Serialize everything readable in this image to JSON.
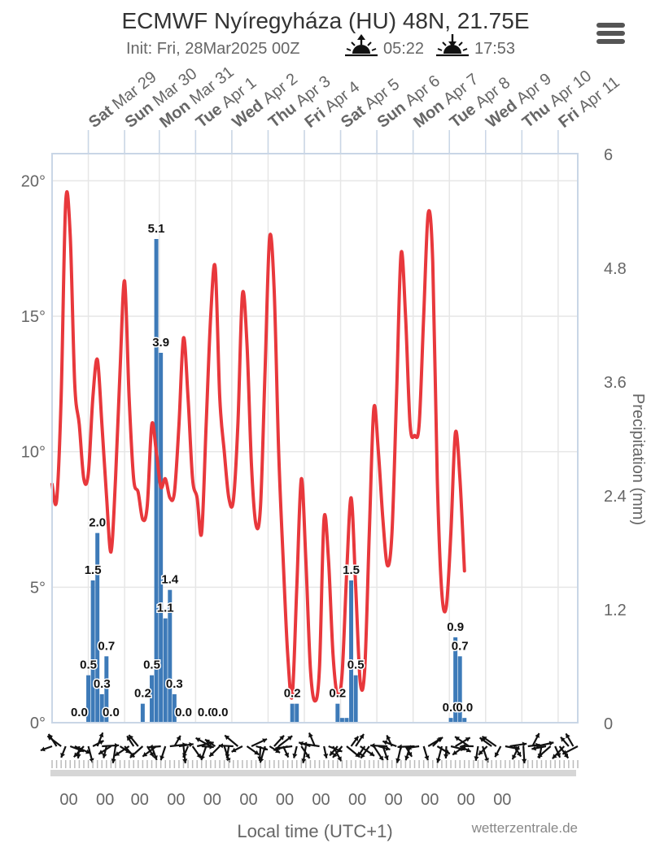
{
  "header": {
    "title": "ECMWF Nyíregyháza (HU) 48N, 21.75E",
    "init_label": "Init: Fri, 28Mar2025 00Z",
    "sunrise_time": "05:22",
    "sunset_time": "17:53"
  },
  "menu": {
    "icon": "hamburger-menu-icon"
  },
  "credit": "wetterzentrale.de",
  "colors": {
    "temperature": "#e8383c",
    "precip": "#3d7ab8",
    "grid": "#e6e6e6",
    "frame": "#c9d6e6",
    "text": "#666666"
  },
  "chart_data": {
    "type": "line+bar",
    "xlabel": "Local time (UTC+1)",
    "ylabel_left": "",
    "ylabel_right": "Precipitation (mm)",
    "y_left": {
      "min": 0,
      "max": 21,
      "ticks": [
        0,
        5,
        10,
        15,
        20
      ],
      "tick_labels": [
        "0°",
        "5°",
        "10°",
        "15°",
        "20°"
      ]
    },
    "y_right": {
      "min": 0,
      "max": 6,
      "ticks": [
        0,
        1.2,
        2.4,
        3.6,
        4.8,
        6
      ],
      "tick_labels": [
        "0",
        "1.2",
        "2.4",
        "3.6",
        "4.8",
        "6"
      ]
    },
    "x_hours": {
      "min": 0,
      "max": 348
    },
    "days": [
      {
        "weekday": "Sat",
        "date": "Mar 29",
        "hour": 24
      },
      {
        "weekday": "Sun",
        "date": "Mar 30",
        "hour": 48
      },
      {
        "weekday": "Mon",
        "date": "Mar 31",
        "hour": 71
      },
      {
        "weekday": "Tue",
        "date": "Apr 1",
        "hour": 95
      },
      {
        "weekday": "Wed",
        "date": "Apr 2",
        "hour": 119
      },
      {
        "weekday": "Thu",
        "date": "Apr 3",
        "hour": 143
      },
      {
        "weekday": "Fri",
        "date": "Apr 4",
        "hour": 167
      },
      {
        "weekday": "Sat",
        "date": "Apr 5",
        "hour": 191
      },
      {
        "weekday": "Sun",
        "date": "Apr 6",
        "hour": 215
      },
      {
        "weekday": "Mon",
        "date": "Apr 7",
        "hour": 239
      },
      {
        "weekday": "Tue",
        "date": "Apr 8",
        "hour": 263
      },
      {
        "weekday": "Wed",
        "date": "Apr 9",
        "hour": 287
      },
      {
        "weekday": "Thu",
        "date": "Apr 10",
        "hour": 311
      },
      {
        "weekday": "Fri",
        "date": "Apr 11",
        "hour": 335
      }
    ],
    "x_tick_label": "00",
    "temperature": {
      "name": "",
      "points": [
        [
          0,
          8.8
        ],
        [
          3,
          8.2
        ],
        [
          6,
          12
        ],
        [
          9,
          19.2
        ],
        [
          12,
          18
        ],
        [
          15,
          12.5
        ],
        [
          18,
          11
        ],
        [
          21,
          9
        ],
        [
          24,
          9.2
        ],
        [
          27,
          12
        ],
        [
          30,
          13.4
        ],
        [
          33,
          11
        ],
        [
          36,
          8.4
        ],
        [
          39,
          6.3
        ],
        [
          42,
          9
        ],
        [
          45,
          13
        ],
        [
          48,
          16.3
        ],
        [
          51,
          12
        ],
        [
          54,
          9
        ],
        [
          57,
          8.5
        ],
        [
          60,
          7.5
        ],
        [
          63,
          8
        ],
        [
          66,
          11
        ],
        [
          69,
          10
        ],
        [
          72,
          8.7
        ],
        [
          75,
          9
        ],
        [
          78,
          8.3
        ],
        [
          81,
          8.5
        ],
        [
          84,
          11
        ],
        [
          87,
          14.2
        ],
        [
          90,
          12
        ],
        [
          93,
          9
        ],
        [
          96,
          8.3
        ],
        [
          99,
          7
        ],
        [
          102,
          11
        ],
        [
          105,
          15
        ],
        [
          108,
          16.8
        ],
        [
          111,
          12
        ],
        [
          114,
          10
        ],
        [
          117,
          8.3
        ],
        [
          120,
          8.2
        ],
        [
          123,
          11
        ],
        [
          126,
          15.8
        ],
        [
          129,
          14
        ],
        [
          132,
          9.5
        ],
        [
          135,
          7.3
        ],
        [
          138,
          8
        ],
        [
          141,
          13
        ],
        [
          144,
          17.9
        ],
        [
          147,
          16
        ],
        [
          150,
          10
        ],
        [
          153,
          6
        ],
        [
          156,
          2.5
        ],
        [
          159,
          1
        ],
        [
          162,
          5
        ],
        [
          165,
          9
        ],
        [
          168,
          6
        ],
        [
          171,
          2
        ],
        [
          174,
          0.8
        ],
        [
          177,
          2
        ],
        [
          180,
          7.5
        ],
        [
          183,
          6
        ],
        [
          186,
          2.5
        ],
        [
          189,
          1
        ],
        [
          192,
          1.8
        ],
        [
          195,
          5.5
        ],
        [
          198,
          8.3
        ],
        [
          201,
          5
        ],
        [
          204,
          1.5
        ],
        [
          207,
          2
        ],
        [
          210,
          7
        ],
        [
          213,
          11.6
        ],
        [
          216,
          10
        ],
        [
          219,
          7.5
        ],
        [
          222,
          5.8
        ],
        [
          225,
          7
        ],
        [
          228,
          12
        ],
        [
          231,
          17.3
        ],
        [
          234,
          15
        ],
        [
          237,
          11
        ],
        [
          240,
          10.6
        ],
        [
          243,
          11
        ],
        [
          246,
          15
        ],
        [
          249,
          18.8
        ],
        [
          252,
          17
        ],
        [
          255,
          9
        ],
        [
          258,
          4.8
        ],
        [
          261,
          4.3
        ],
        [
          264,
          7
        ],
        [
          267,
          10.7
        ],
        [
          270,
          9
        ],
        [
          273,
          5.6
        ]
      ]
    },
    "precipitation": {
      "name": "",
      "bars": [
        [
          24,
          0.5
        ],
        [
          27,
          1.5
        ],
        [
          30,
          2.0
        ],
        [
          33,
          0.3
        ],
        [
          36,
          0.7
        ],
        [
          60,
          0.2
        ],
        [
          66,
          0.5
        ],
        [
          69,
          5.1
        ],
        [
          72,
          3.9
        ],
        [
          75,
          1.1
        ],
        [
          78,
          1.4
        ],
        [
          81,
          0.3
        ],
        [
          159,
          0.2
        ],
        [
          162,
          0.2
        ],
        [
          189,
          0.2
        ],
        [
          192,
          0.05
        ],
        [
          195,
          0.05
        ],
        [
          198,
          1.5
        ],
        [
          201,
          0.5
        ],
        [
          264,
          0.05
        ],
        [
          267,
          0.9
        ],
        [
          270,
          0.7
        ],
        [
          273,
          0.05
        ]
      ],
      "labels": [
        [
          18,
          "0.0"
        ],
        [
          24,
          "0.5"
        ],
        [
          27,
          "1.5"
        ],
        [
          30,
          "2.0"
        ],
        [
          33,
          "0.3"
        ],
        [
          36,
          "0.7"
        ],
        [
          39,
          "0.0"
        ],
        [
          60,
          "0.2"
        ],
        [
          66,
          "0.5"
        ],
        [
          69,
          "5.1"
        ],
        [
          72,
          "3.9"
        ],
        [
          75,
          "1.1"
        ],
        [
          78,
          "1.4"
        ],
        [
          81,
          "0.3"
        ],
        [
          87,
          "0.0"
        ],
        [
          102,
          "0.0"
        ],
        [
          111,
          "0.0"
        ],
        [
          159,
          "0.2"
        ],
        [
          189,
          "0.2"
        ],
        [
          198,
          "1.5"
        ],
        [
          201,
          "0.5"
        ],
        [
          264,
          "0.0"
        ],
        [
          267,
          "0.9"
        ],
        [
          270,
          "0.7"
        ],
        [
          273,
          "0.0"
        ]
      ]
    }
  }
}
